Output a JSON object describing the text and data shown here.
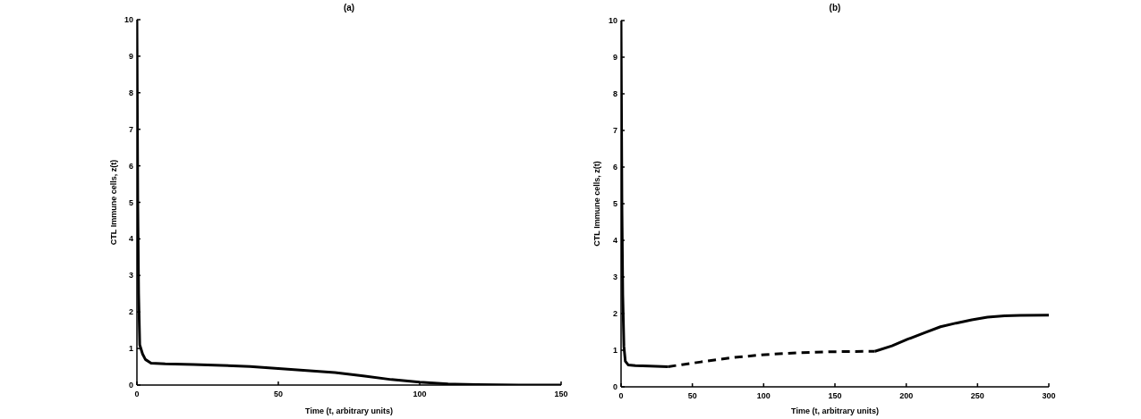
{
  "chart_data": [
    {
      "type": "line",
      "title": "(a)",
      "xlabel": "Time (t, arbitrary units)",
      "ylabel": "CTL Immune cells, z(t)",
      "xlim": [
        0,
        150
      ],
      "xticks": [
        0,
        50,
        100,
        150
      ],
      "ylim": [
        0,
        10
      ],
      "yticks": [
        0,
        1,
        2,
        3,
        4,
        5,
        6,
        7,
        8,
        9,
        10
      ],
      "line_style": "solid",
      "series": [
        {
          "color": "#000000",
          "x": [
            0,
            0.3,
            0.6,
            1,
            2,
            3,
            5,
            10,
            20,
            30,
            40,
            50,
            60,
            70,
            80,
            90,
            100,
            110,
            120,
            135,
            150
          ],
          "values": [
            10,
            5,
            2.5,
            1.1,
            0.85,
            0.7,
            0.6,
            0.58,
            0.56,
            0.54,
            0.51,
            0.45,
            0.4,
            0.34,
            0.25,
            0.15,
            0.08,
            0.03,
            0.01,
            0,
            0
          ]
        }
      ]
    },
    {
      "type": "line",
      "title": "(b)",
      "xlabel": "Time (t, arbitrary units)",
      "ylabel": "CTL Immune cells, z(t)",
      "xlim": [
        0,
        300
      ],
      "xticks": [
        0,
        50,
        100,
        150,
        200,
        250,
        300
      ],
      "ylim": [
        0,
        10
      ],
      "yticks": [
        0,
        1,
        2,
        3,
        4,
        5,
        6,
        7,
        8,
        9,
        10
      ],
      "line_style": "solid",
      "series": [
        {
          "color": "#000000",
          "x": [
            0,
            0.6,
            1.2,
            2,
            3,
            5,
            10,
            20,
            33
          ],
          "values": [
            10,
            5,
            2.5,
            1.1,
            0.7,
            0.6,
            0.58,
            0.57,
            0.55
          ]
        },
        {
          "color": "#000000",
          "line_style": "dashed",
          "x": [
            33,
            40,
            56,
            78,
            101,
            123,
            150,
            178
          ],
          "values": [
            0.55,
            0.59,
            0.68,
            0.8,
            0.88,
            0.93,
            0.96,
            0.97
          ]
        },
        {
          "color": "#000000",
          "x": [
            178,
            190,
            201,
            213,
            224,
            235,
            246,
            257,
            269,
            280,
            300
          ],
          "values": [
            0.97,
            1.12,
            1.3,
            1.48,
            1.64,
            1.74,
            1.83,
            1.9,
            1.94,
            1.95,
            1.96
          ]
        }
      ]
    }
  ]
}
